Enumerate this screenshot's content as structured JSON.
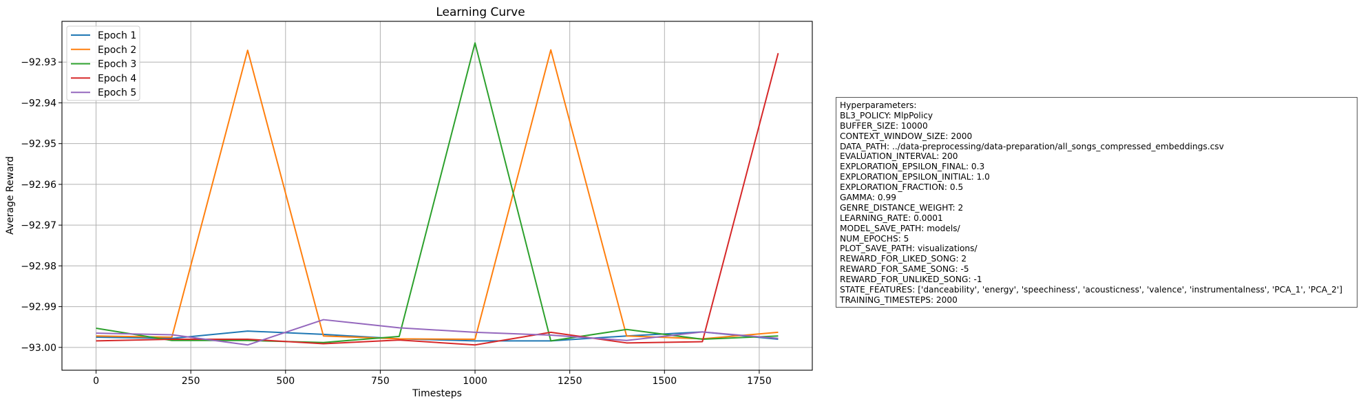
{
  "chart_data": {
    "type": "line",
    "title": "Learning Curve",
    "xlabel": "Timesteps",
    "ylabel": "Average Reward",
    "xlim": [
      -90,
      1890
    ],
    "ylim": [
      -93.0056,
      -92.92
    ],
    "xticks": [
      0,
      250,
      500,
      750,
      1000,
      1250,
      1500,
      1750
    ],
    "xtick_labels": [
      "0",
      "250",
      "500",
      "750",
      "1000",
      "1250",
      "1500",
      "1750"
    ],
    "yticks": [
      -92.93,
      -92.94,
      -92.95,
      -92.96,
      -92.97,
      -92.98,
      -92.99,
      -93.0
    ],
    "ytick_labels": [
      "−92.93",
      "−92.94",
      "−92.95",
      "−92.96",
      "−92.97",
      "−92.98",
      "−92.99",
      "−93.00"
    ],
    "grid": true,
    "legend_position": "top-left",
    "x": [
      0,
      200,
      400,
      600,
      800,
      1000,
      1200,
      1400,
      1600,
      1800
    ],
    "series": [
      {
        "name": "Epoch 1",
        "color": "#1f77b4",
        "values": [
          -92.9975,
          -92.9978,
          -92.996,
          -92.9968,
          -92.9979,
          -92.9984,
          -92.9984,
          -92.9972,
          -92.9962,
          -92.998
        ]
      },
      {
        "name": "Epoch 2",
        "color": "#ff7f0e",
        "values": [
          -92.9972,
          -92.9975,
          -92.9271,
          -92.9972,
          -92.9979,
          -92.998,
          -92.927,
          -92.9972,
          -92.9979,
          -92.9963
        ]
      },
      {
        "name": "Epoch 3",
        "color": "#2ca02c",
        "values": [
          -92.9953,
          -92.9983,
          -92.9983,
          -92.9988,
          -92.9973,
          -92.9253,
          -92.9984,
          -92.9956,
          -92.998,
          -92.9972
        ]
      },
      {
        "name": "Epoch 4",
        "color": "#d62728",
        "values": [
          -92.9984,
          -92.998,
          -92.998,
          -92.9991,
          -92.9982,
          -92.9994,
          -92.9963,
          -92.9989,
          -92.9986,
          -92.9278
        ]
      },
      {
        "name": "Epoch 5",
        "color": "#9467bd",
        "values": [
          -92.9965,
          -92.9969,
          -92.9994,
          -92.9932,
          -92.9952,
          -92.9963,
          -92.997,
          -92.9983,
          -92.9962,
          -92.9978
        ]
      }
    ]
  },
  "hyperparameters": {
    "heading": "Hyperparameters:",
    "lines": [
      "BL3_POLICY: MlpPolicy",
      "BUFFER_SIZE: 10000",
      "CONTEXT_WINDOW_SIZE: 2000",
      "DATA_PATH: ../data-preprocessing/data-preparation/all_songs_compressed_embeddings.csv",
      "EVALUATION_INTERVAL: 200",
      "EXPLORATION_EPSILON_FINAL: 0.3",
      "EXPLORATION_EPSILON_INITIAL: 1.0",
      "EXPLORATION_FRACTION: 0.5",
      "GAMMA: 0.99",
      "GENRE_DISTANCE_WEIGHT: 2",
      "LEARNING_RATE: 0.0001",
      "MODEL_SAVE_PATH: models/",
      "NUM_EPOCHS: 5",
      "PLOT_SAVE_PATH: visualizations/",
      "REWARD_FOR_LIKED_SONG: 2",
      "REWARD_FOR_SAME_SONG: -5",
      "REWARD_FOR_UNLIKED_SONG: -1",
      "STATE_FEATURES: ['danceability', 'energy', 'speechiness', 'acousticness', 'valence', 'instrumentalness', 'PCA_1', 'PCA_2']",
      "TRAINING_TIMESTEPS: 2000"
    ]
  }
}
